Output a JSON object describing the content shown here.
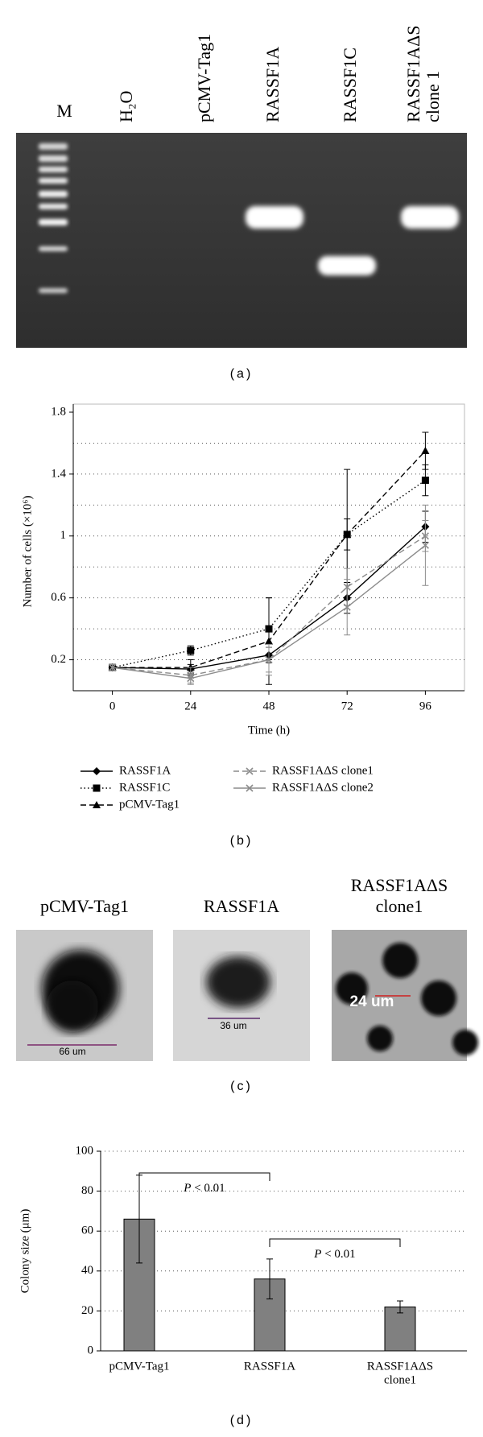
{
  "gel": {
    "lane_labels": [
      "M",
      "H₂O",
      "pCMV-Tag1",
      "RASSF1A",
      "RASSF1C",
      [
        "RASSF1AΔS",
        "clone 1"
      ]
    ],
    "caption": "(a)"
  },
  "chart_data": [
    {
      "type": "line",
      "caption": "(b)",
      "y_label": "Number of cells (×10⁶)",
      "x_label": "Time (h)",
      "x": [
        0,
        24,
        48,
        72,
        96
      ],
      "xlim": [
        -12,
        108
      ],
      "xticks": [
        0,
        24,
        48,
        72,
        96
      ],
      "ylim": [
        0,
        1.8
      ],
      "yticks": [
        0.2,
        0.6,
        1,
        1.4,
        1.8
      ],
      "grid_lines": [
        0.2,
        0.4,
        0.6,
        0.8,
        1,
        1.2,
        1.4,
        1.6
      ],
      "series": [
        {
          "name": "RASSF1A",
          "color": "#000000",
          "dash": "solid",
          "marker": "diamond",
          "values": [
            0.15,
            0.14,
            0.23,
            0.6,
            1.06
          ],
          "errors": [
            0.02,
            0.03,
            0.05,
            0.1,
            0.1
          ]
        },
        {
          "name": "RASSF1C",
          "color": "#000000",
          "dash": "dotted",
          "marker": "square",
          "values": [
            0.15,
            0.26,
            0.4,
            1.01,
            1.36
          ],
          "errors": [
            0.02,
            0.03,
            0.2,
            0.42,
            0.1
          ]
        },
        {
          "name": "pCMV-Tag1",
          "color": "#000000",
          "dash": "dashed",
          "marker": "triangle",
          "values": [
            0.15,
            0.15,
            0.32,
            1.01,
            1.55
          ],
          "errors": [
            0.02,
            0.05,
            0.28,
            0.1,
            0.12
          ]
        },
        {
          "name": "RASSF1AΔS clone1",
          "color": "#8c8c8c",
          "dash": "dashed",
          "marker": "x",
          "values": [
            0.15,
            0.1,
            0.2,
            0.67,
            1.0
          ],
          "errors": [
            0.02,
            0.05,
            0.08,
            0.12,
            0.1
          ]
        },
        {
          "name": "RASSF1AΔS clone2",
          "color": "#8c8c8c",
          "dash": "solid",
          "marker": "x",
          "values": [
            0.15,
            0.08,
            0.2,
            0.54,
            0.94
          ],
          "errors": [
            0.02,
            0.04,
            0.1,
            0.18,
            0.26
          ]
        }
      ]
    },
    {
      "type": "bar",
      "caption": "(d)",
      "y_label": "Colony size (μm)",
      "categories": [
        "pCMV-Tag1",
        "RASSF1A",
        [
          "RASSF1AΔS",
          "clone1"
        ]
      ],
      "values": [
        66,
        36,
        22
      ],
      "errors": [
        22,
        10,
        3
      ],
      "color": "#808080",
      "ylim": [
        0,
        100
      ],
      "yticks": [
        0,
        20,
        40,
        60,
        80,
        100
      ],
      "grid": true,
      "annotations": [
        "P < 0.01",
        "P < 0.01"
      ]
    }
  ],
  "micrographs": {
    "panels": [
      {
        "title": "pCMV-Tag1",
        "scale_label": "66 um"
      },
      {
        "title": "RASSF1A",
        "scale_label": "36 um"
      },
      {
        "title": [
          "RASSF1AΔS",
          "clone1"
        ],
        "scale_label": "24 um"
      }
    ],
    "caption": "(c)"
  }
}
